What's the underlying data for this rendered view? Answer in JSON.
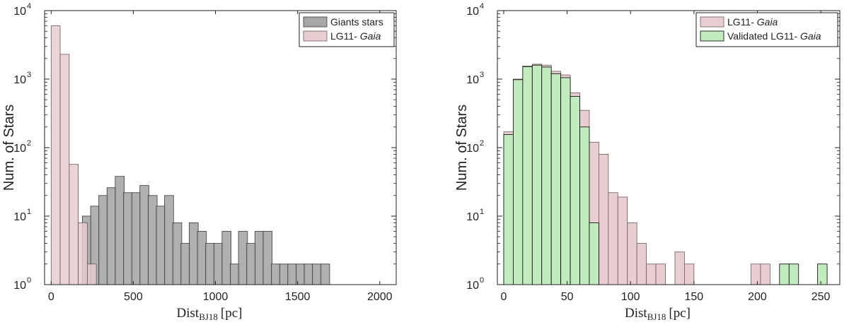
{
  "chart_data": [
    {
      "type": "bar",
      "subtype": "histogram",
      "yscale": "log",
      "xlim": [
        -40,
        2100
      ],
      "ylim": [
        1,
        10000
      ],
      "xticks": [
        0,
        500,
        1000,
        1500,
        2000
      ],
      "xlabel_main": "Dist",
      "xlabel_sub": "BJ18",
      "xlabel_unit": "[pc]",
      "ylabel": "Num. of Stars",
      "legend_position": "top-right",
      "grid": false,
      "series": [
        {
          "name_prefix": "Giants stars",
          "name_italic": "",
          "color": "#a7a7a7",
          "opacity": 0.9,
          "edge": "#3a3a3a",
          "bin_width": 55,
          "bins": [
            {
              "x0": 165,
              "count": 8
            },
            {
              "x0": 220,
              "count": 2
            },
            {
              "x0": 165,
              "count": 0
            },
            {
              "x0": 190,
              "count": 0
            }
          ],
          "bins_main": [
            [
              160,
              8
            ],
            [
              215,
              4
            ],
            [
              260,
              2
            ]
          ],
          "values_list": [
            [
              190,
              10
            ],
            [
              240,
              14
            ],
            [
              290,
              20
            ],
            [
              340,
              26
            ],
            [
              390,
              38
            ],
            [
              440,
              22
            ],
            [
              490,
              22
            ],
            [
              540,
              28
            ],
            [
              590,
              20
            ],
            [
              640,
              14
            ],
            [
              690,
              20
            ],
            [
              740,
              8
            ],
            [
              790,
              4
            ],
            [
              840,
              8
            ],
            [
              890,
              6
            ],
            [
              940,
              4
            ],
            [
              990,
              4
            ],
            [
              1040,
              6
            ],
            [
              1090,
              2
            ],
            [
              1140,
              6
            ],
            [
              1190,
              4
            ],
            [
              1240,
              6
            ],
            [
              1290,
              6
            ],
            [
              1340,
              2
            ],
            [
              1390,
              2
            ],
            [
              1440,
              2
            ],
            [
              1490,
              2
            ],
            [
              1540,
              2
            ],
            [
              1590,
              2
            ],
            [
              1640,
              2
            ]
          ]
        },
        {
          "name_prefix": "LG11- ",
          "name_italic": "Gaia",
          "color": "#e8cdd1",
          "opacity": 0.85,
          "edge": "#6a5a5c",
          "values_list": [
            [
              0,
              6000
            ],
            [
              55,
              2300
            ],
            [
              110,
              57
            ],
            [
              165,
              8
            ],
            [
              220,
              2
            ]
          ]
        }
      ]
    },
    {
      "type": "bar",
      "subtype": "histogram",
      "yscale": "log",
      "xlim": [
        -5,
        265
      ],
      "ylim": [
        1,
        10000
      ],
      "xticks": [
        0,
        50,
        100,
        150,
        200,
        250
      ],
      "xlabel_main": "Dist",
      "xlabel_sub": "BJ18",
      "xlabel_unit": "[pc]",
      "ylabel": "Num. of Stars",
      "legend_position": "top-right",
      "grid": false,
      "series": [
        {
          "name_prefix": "LG11- ",
          "name_italic": "Gaia",
          "color": "#e8cdd1",
          "edge": "#6a5a5c",
          "values_list": [
            [
              0,
              170
            ],
            [
              7.5,
              1000
            ],
            [
              15,
              1550
            ],
            [
              22.5,
              1650
            ],
            [
              30,
              1600
            ],
            [
              37.5,
              1300
            ],
            [
              45,
              1150
            ],
            [
              52.5,
              630
            ],
            [
              60,
              350
            ],
            [
              67.5,
              120
            ],
            [
              75,
              80
            ],
            [
              82.5,
              22
            ],
            [
              90,
              19
            ],
            [
              97.5,
              8
            ],
            [
              105,
              4
            ],
            [
              112.5,
              2
            ],
            [
              120,
              2
            ],
            [
              127.5,
              0
            ],
            [
              135,
              3
            ],
            [
              142.5,
              2
            ],
            [
              150,
              0
            ],
            [
              157.5,
              0
            ],
            [
              165,
              0
            ],
            [
              172.5,
              0
            ],
            [
              180,
              0
            ],
            [
              187.5,
              0
            ],
            [
              195,
              2
            ],
            [
              202.5,
              2
            ],
            [
              210,
              0
            ],
            [
              217.5,
              2
            ]
          ]
        },
        {
          "name_prefix": "Validated LG11- ",
          "name_italic": "Gaia",
          "color": "#c2ecc0",
          "edge": "#000000",
          "values_list": [
            [
              0,
              155
            ],
            [
              7.5,
              980
            ],
            [
              15,
              1520
            ],
            [
              22.5,
              1600
            ],
            [
              30,
              1500
            ],
            [
              37.5,
              1200
            ],
            [
              45,
              1050
            ],
            [
              52.5,
              560
            ],
            [
              60,
              200
            ],
            [
              67.5,
              8
            ],
            [
              217.5,
              2
            ],
            [
              225,
              2
            ],
            [
              247.5,
              2
            ]
          ]
        }
      ]
    }
  ]
}
